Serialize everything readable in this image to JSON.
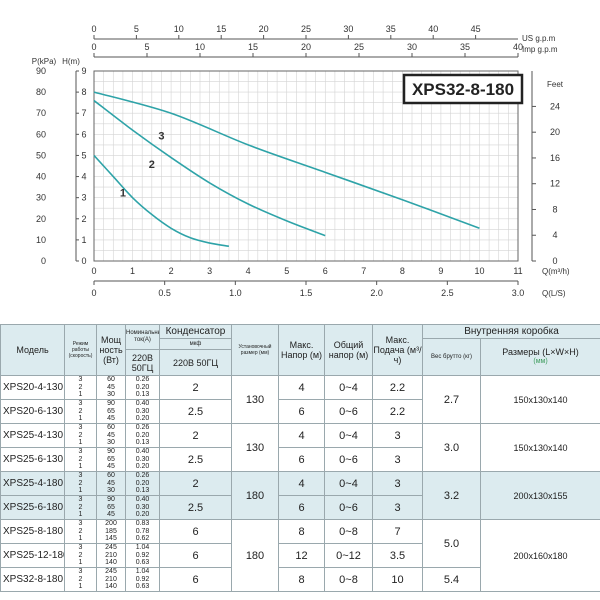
{
  "chart_data": {
    "type": "line",
    "title": "XPS32-8-180",
    "axes": {
      "bottom_m3h": {
        "label": "Q(m³/h)",
        "range": [
          0,
          11
        ],
        "ticks": [
          "0",
          "1",
          "2",
          "3",
          "4",
          "5",
          "6",
          "7",
          "8",
          "9",
          "10",
          "11"
        ]
      },
      "bottom_ls": {
        "label": "Q(L/S)",
        "range": [
          0,
          3.0
        ],
        "ticks": [
          "0",
          "0.5",
          "1.0",
          "1.5",
          "2.0",
          "2.5",
          "3.0"
        ]
      },
      "top_us": {
        "label": "US g.p.m",
        "range": [
          0,
          50
        ],
        "ticks": [
          "0",
          "5",
          "10",
          "15",
          "20",
          "25",
          "30",
          "35",
          "40",
          "45"
        ]
      },
      "top_imp": {
        "label": "Imp g.p.m",
        "range": [
          0,
          40
        ],
        "ticks": [
          "0",
          "5",
          "10",
          "15",
          "20",
          "25",
          "30",
          "35",
          "40"
        ]
      },
      "left_kpa": {
        "label": "P(kPa)",
        "range": [
          0,
          90
        ],
        "ticks": [
          "0",
          "10",
          "20",
          "30",
          "40",
          "50",
          "60",
          "70",
          "80",
          "90"
        ]
      },
      "left_m": {
        "label": "H(m)",
        "range": [
          0,
          9
        ],
        "ticks": [
          "0",
          "1",
          "2",
          "3",
          "4",
          "5",
          "6",
          "7",
          "8",
          "9"
        ]
      },
      "right_feet": {
        "label": "Feet",
        "range": [
          0,
          29.5
        ],
        "ticks": [
          "0",
          "4",
          "8",
          "12",
          "16",
          "20",
          "24"
        ]
      }
    },
    "grid": true,
    "series": [
      {
        "name": "1",
        "x": [
          0,
          0.5,
          1,
          1.5,
          2,
          2.5,
          3,
          3.5
        ],
        "y": [
          5.0,
          4.0,
          3.0,
          2.2,
          1.55,
          1.1,
          0.85,
          0.7
        ]
      },
      {
        "name": "2",
        "x": [
          0,
          1,
          2,
          3,
          4,
          5,
          6
        ],
        "y": [
          7.6,
          6.2,
          4.9,
          3.7,
          2.7,
          1.9,
          1.2
        ]
      },
      {
        "name": "3",
        "x": [
          0,
          2,
          4,
          6,
          8,
          10
        ],
        "y": [
          8.0,
          7.0,
          5.5,
          4.2,
          2.9,
          1.55
        ]
      }
    ]
  },
  "table": {
    "headers": {
      "model": "Модель",
      "mode": "Режим работы (скорость)",
      "power": "Мощ ность (Вт)",
      "current": "Номинальный ток(A)",
      "current_sub": "220В 50ГЦ",
      "capacitor": "Конденсатор",
      "capacitor_unit": "мкф",
      "capacitor_sub": "220В 50ГЦ",
      "install": "Установочный размер (мм)",
      "max_head": "Макс. Напор (м)",
      "total_head": "Общий напор (м)",
      "max_flow": "Макс. Подача (м³/ч)",
      "box": "Внутренняя коробка",
      "weight": "Вес брутто (кг)",
      "dims": "Размеры (L×W×H)",
      "dims_unit": "(мм)"
    },
    "rows": [
      {
        "model": "XPS20-4-130",
        "modes": "3\n2\n1",
        "power": "60\n45\n30",
        "current": "0.26\n0.20\n0.13",
        "cap": "2",
        "install": "130",
        "max_head": "4",
        "total_head": "0~4",
        "max_flow": "2.2",
        "weight": "2.7",
        "dims": "150x130x140"
      },
      {
        "model": "XPS20-6-130",
        "modes": "3\n2\n1",
        "power": "90\n65\n45",
        "current": "0.40\n0.30\n0.20",
        "cap": "2.5",
        "max_head": "6",
        "total_head": "0~6",
        "max_flow": "2.2"
      },
      {
        "model": "XPS25-4-130",
        "modes": "3\n2\n1",
        "power": "60\n45\n30",
        "current": "0.26\n0.20\n0.13",
        "cap": "2",
        "install": "130",
        "max_head": "4",
        "total_head": "0~4",
        "max_flow": "3",
        "weight": "3.0",
        "dims": "150x130x140"
      },
      {
        "model": "XPS25-6-130",
        "modes": "3\n2\n1",
        "power": "90\n65\n45",
        "current": "0.40\n0.30\n0.20",
        "cap": "2.5",
        "max_head": "6",
        "total_head": "0~6",
        "max_flow": "3"
      },
      {
        "model": "XPS25-4-180",
        "modes": "3\n2\n1",
        "power": "60\n45\n30",
        "current": "0.26\n0.20\n0.13",
        "cap": "2",
        "install": "180",
        "max_head": "4",
        "total_head": "0~4",
        "max_flow": "3",
        "weight": "3.2",
        "dims": "200x130x155"
      },
      {
        "model": "XPS25-6-180",
        "modes": "3\n2\n1",
        "power": "90\n65\n45",
        "current": "0.40\n0.30\n0.20",
        "cap": "2.5",
        "max_head": "6",
        "total_head": "0~6",
        "max_flow": "3"
      },
      {
        "model": "XPS25-8-180",
        "modes": "3\n2\n1",
        "power": "200\n185\n145",
        "current": "0.83\n0.78\n0.62",
        "cap": "6",
        "install": "180",
        "max_head": "8",
        "total_head": "0~8",
        "max_flow": "7",
        "weight": "5.0",
        "dims": "200x160x180"
      },
      {
        "model": "XPS25-12-180",
        "modes": "3\n2\n1",
        "power": "245\n210\n140",
        "current": "1.04\n0.92\n0.63",
        "cap": "6",
        "max_head": "12",
        "total_head": "0~12",
        "max_flow": "3.5"
      },
      {
        "model": "XPS32-8-180",
        "modes": "3\n2\n1",
        "power": "245\n210\n140",
        "current": "1.04\n0.92\n0.63",
        "cap": "6",
        "max_head": "8",
        "total_head": "0~8",
        "max_flow": "10",
        "weight": "5.4"
      }
    ]
  }
}
